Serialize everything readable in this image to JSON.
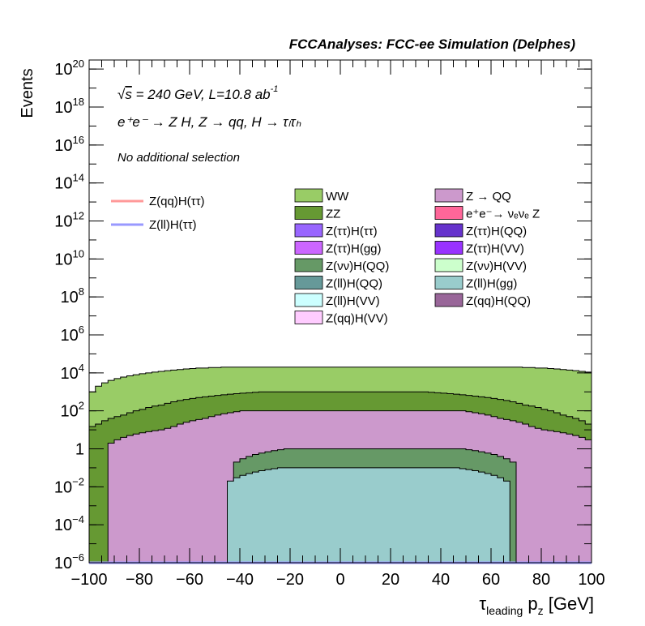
{
  "header": {
    "title": "FCCAnalyses: FCC-ee Simulation (Delphes)"
  },
  "annotations": {
    "line1_prefix": "s",
    "line1_rest": " = 240 GeV, L=10.8 ab",
    "line1_exp": "-1",
    "line2": "e⁺e⁻ → Z H, Z  → qq, H  →  τₗτₕ",
    "line3": "No additional selection"
  },
  "axes": {
    "ylabel": "Events",
    "xlabel_main": "τ",
    "xlabel_sub": "leading",
    "xlabel_rest": " p",
    "xlabel_sub2": "z",
    "xlabel_unit": " [GeV]"
  },
  "chart_data": {
    "type": "area",
    "stacked_histogram": true,
    "x_range": [
      -100,
      100
    ],
    "y_range": [
      1e-06,
      3e+20
    ],
    "y_scale": "log",
    "grid": false,
    "x_ticks": [
      -100,
      -80,
      -60,
      -40,
      -20,
      0,
      20,
      40,
      60,
      80,
      100
    ],
    "x_tick_labels": [
      "−100",
      "−80",
      "−60",
      "−40",
      "−20",
      "0",
      "20",
      "40",
      "60",
      "80",
      "100"
    ],
    "y_ticks": [
      {
        "value": 1e-06,
        "base": "10",
        "exp": "−6"
      },
      {
        "value": 0.0001,
        "base": "10",
        "exp": "−4"
      },
      {
        "value": 0.01,
        "base": "10",
        "exp": "−2"
      },
      {
        "value": 1,
        "base": "1",
        "exp": ""
      },
      {
        "value": 100.0,
        "base": "10",
        "exp": "2"
      },
      {
        "value": 10000.0,
        "base": "10",
        "exp": "4"
      },
      {
        "value": 1000000.0,
        "base": "10",
        "exp": "6"
      },
      {
        "value": 100000000.0,
        "base": "10",
        "exp": "8"
      },
      {
        "value": 10000000000.0,
        "base": "10",
        "exp": "10"
      },
      {
        "value": 1000000000000.0,
        "base": "10",
        "exp": "12"
      },
      {
        "value": 100000000000000.0,
        "base": "10",
        "exp": "14"
      },
      {
        "value": 1e+16,
        "base": "10",
        "exp": "16"
      },
      {
        "value": 1e+18,
        "base": "10",
        "exp": "18"
      },
      {
        "value": 1e+20,
        "base": "10",
        "exp": "20"
      }
    ],
    "stack_layers": [
      {
        "name": "WW",
        "color": "#99cc66",
        "top": [
          1000.0,
          2000.0,
          3000.0,
          4000.0,
          5000.0,
          6000.0,
          7000.0,
          8000.0,
          9000.0,
          10000.0,
          11000.0,
          12000.0,
          13000.0,
          14000.0,
          15000.0,
          16000.0,
          17000.0,
          18000.0,
          18000.0,
          19000.0,
          19000.0,
          20000.0,
          20000.0,
          20000.0,
          20000.0,
          20000.0,
          20000.0,
          20000.0,
          20000.0,
          20000.0,
          20000.0,
          20000.0,
          20000.0,
          20000.0,
          20000.0,
          20000.0,
          20000.0,
          20000.0,
          20000.0,
          20000.0,
          20000.0,
          20000.0,
          20000.0,
          20000.0,
          20000.0,
          20000.0,
          20000.0,
          20000.0,
          20000.0,
          20000.0,
          20000.0,
          20000.0,
          20000.0,
          20000.0,
          20000.0,
          20000.0,
          20000.0,
          20000.0,
          20000.0,
          20000.0,
          20000.0,
          20000.0,
          20000.0,
          20000.0,
          20000.0,
          20000.0,
          20000.0,
          20000.0,
          20000.0,
          19000.0,
          19000.0,
          18000.0,
          18000.0,
          17000.0,
          16000.0,
          15000.0,
          14000.0,
          13000.0,
          12000.0,
          11000.0
        ]
      },
      {
        "name": "ZZ",
        "color": "#669933",
        "top": [
          15.0,
          20.0,
          30.0,
          40.0,
          50.0,
          60.0,
          80.0,
          100.0,
          120.0,
          150.0,
          180.0,
          200.0,
          250.0,
          300.0,
          350.0,
          400.0,
          450.0,
          500.0,
          550.0,
          600.0,
          650.0,
          700.0,
          750.0,
          800.0,
          850.0,
          900.0,
          950.0,
          1000.0,
          1000.0,
          1000.0,
          1000.0,
          1000.0,
          1000.0,
          1000.0,
          1000.0,
          1000.0,
          1000.0,
          1000.0,
          1000.0,
          1000.0,
          1000.0,
          1000.0,
          1000.0,
          1000.0,
          1000.0,
          1000.0,
          1000.0,
          1000.0,
          1000.0,
          1000.0,
          1000.0,
          1000.0,
          1000.0,
          1000.0,
          950.0,
          900.0,
          850.0,
          800.0,
          750.0,
          700.0,
          650.0,
          600.0,
          550.0,
          500.0,
          450.0,
          400.0,
          350.0,
          300.0,
          250.0,
          200.0,
          180.0,
          150.0,
          120.0,
          100.0,
          80.0,
          60.0,
          50.0,
          40.0,
          30.0,
          20.0
        ]
      },
      {
        "name": "Z → QQ",
        "color": "#cc99cc",
        "top": [
          1e-06,
          1e-06,
          1e-06,
          2,
          3,
          4,
          5,
          6,
          7,
          8,
          9,
          10.0,
          12.0,
          15.0,
          20.0,
          25.0,
          30.0,
          35.0,
          40.0,
          50.0,
          60.0,
          70.0,
          80.0,
          90.0,
          100.0,
          100.0,
          100.0,
          100.0,
          100.0,
          100.0,
          100.0,
          100.0,
          100.0,
          100.0,
          100.0,
          100.0,
          100.0,
          100.0,
          100.0,
          100.0,
          100.0,
          100.0,
          100.0,
          100.0,
          100.0,
          100.0,
          100.0,
          100.0,
          100.0,
          100.0,
          100.0,
          100.0,
          100.0,
          100.0,
          100.0,
          100.0,
          100.0,
          100.0,
          100.0,
          100.0,
          90.0,
          80.0,
          70.0,
          60.0,
          50.0,
          40.0,
          35.0,
          30.0,
          25.0,
          20.0,
          15.0,
          12.0,
          10.0,
          9,
          8,
          7,
          6,
          5,
          4,
          3
        ]
      },
      {
        "name": "Z(νν)H(QQ)",
        "color": "#669966",
        "top": [
          1e-06,
          1e-06,
          1e-06,
          1e-06,
          1e-06,
          1e-06,
          1e-06,
          1e-06,
          1e-06,
          1e-06,
          1e-06,
          1e-06,
          1e-06,
          1e-06,
          1e-06,
          1e-06,
          1e-06,
          1e-06,
          1e-06,
          1e-06,
          1e-06,
          1e-06,
          1e-06,
          0.2,
          0.3,
          0.4,
          0.5,
          0.6,
          0.7,
          0.8,
          0.9,
          1,
          1,
          1,
          1,
          1,
          1,
          1,
          1,
          1,
          1,
          1,
          1,
          1,
          1,
          1,
          1,
          1,
          1,
          1,
          1,
          1,
          1,
          1,
          1,
          1,
          1,
          1,
          1,
          1,
          0.9,
          0.8,
          0.7,
          0.6,
          0.5,
          0.4,
          0.3,
          0.2,
          1e-06,
          1e-06,
          1e-06,
          1e-06,
          1e-06,
          1e-06,
          1e-06,
          1e-06,
          1e-06,
          1e-06,
          1e-06,
          1e-06
        ]
      },
      {
        "name": "Z(ll)H(gg)",
        "color": "#99cccc",
        "top": [
          1e-06,
          1e-06,
          1e-06,
          1e-06,
          1e-06,
          1e-06,
          1e-06,
          1e-06,
          1e-06,
          1e-06,
          1e-06,
          1e-06,
          1e-06,
          1e-06,
          1e-06,
          1e-06,
          1e-06,
          1e-06,
          1e-06,
          1e-06,
          1e-06,
          1e-06,
          0.02,
          0.03,
          0.04,
          0.05,
          0.06,
          0.07,
          0.08,
          0.09,
          0.1,
          0.1,
          0.1,
          0.1,
          0.1,
          0.1,
          0.1,
          0.1,
          0.1,
          0.1,
          0.1,
          0.1,
          0.1,
          0.1,
          0.1,
          0.1,
          0.1,
          0.1,
          0.1,
          0.1,
          0.1,
          0.1,
          0.1,
          0.1,
          0.1,
          0.1,
          0.1,
          0.1,
          0.1,
          0.09,
          0.08,
          0.07,
          0.06,
          0.05,
          0.04,
          0.03,
          0.02,
          1e-06,
          1e-06,
          1e-06,
          1e-06,
          1e-06,
          1e-06,
          1e-06,
          1e-06,
          1e-06,
          1e-06,
          1e-06,
          1e-06,
          1e-06
        ]
      }
    ],
    "lines": [
      {
        "name": "Z(qq)H(ττ)",
        "color": "#ff9999",
        "values": [
          1e-06,
          1e-06,
          1e-06,
          1e-06,
          1e-06,
          1e-06,
          1e-06,
          1e-06,
          1e-06,
          1e-06,
          1e-06,
          1e-06,
          1e-06,
          1e-06,
          1e-06,
          1e-06,
          1e-06,
          1e-06,
          1e-06,
          1e-06,
          1e-06,
          1e-06,
          1e-06,
          1e-06,
          1e-06,
          1e-06,
          1e-06,
          1e-06,
          1e-06,
          1e-06,
          1e-06,
          1e-06,
          1e-06,
          1e-06,
          1e-06,
          1e-06,
          1e-06,
          1e-06,
          1e-06,
          1e-06,
          1e-06,
          1e-06,
          1e-06,
          1e-06,
          1e-06,
          1e-06,
          1e-06,
          1e-06,
          1e-06,
          1e-06,
          1e-06,
          1e-06,
          1e-06,
          1e-06,
          1e-06,
          1e-06,
          1e-06,
          1e-06,
          1e-06,
          1e-06,
          1e-06,
          1e-06,
          1e-06,
          1e-06,
          1e-06,
          1e-06,
          1e-06,
          1e-06,
          1e-06,
          1e-06,
          1e-06,
          1e-06,
          1e-06,
          1e-06,
          1e-06,
          1e-06,
          1e-06,
          1e-06,
          1e-06,
          1e-06
        ]
      },
      {
        "name": "Z(ll)H(ττ)",
        "color": "#9999ff",
        "values": [
          1e-06,
          1e-06,
          1e-06,
          1e-06,
          1e-06,
          1e-06,
          1e-06,
          1e-06,
          1e-06,
          1e-06,
          1e-06,
          1e-06,
          1e-06,
          1e-06,
          1e-06,
          1e-06,
          1e-06,
          1e-06,
          1e-06,
          1e-06,
          1e-06,
          1e-06,
          1e-06,
          1e-06,
          1e-06,
          1e-06,
          1e-06,
          1e-06,
          1e-06,
          1e-06,
          1e-06,
          1e-06,
          1e-06,
          1e-06,
          1e-06,
          1e-06,
          1e-06,
          1e-06,
          1e-06,
          1e-06,
          1e-06,
          1e-06,
          1e-06,
          1e-06,
          1e-06,
          1e-06,
          1e-06,
          1e-06,
          1e-06,
          1e-06,
          1e-06,
          1e-06,
          1e-06,
          1e-06,
          1e-06,
          1e-06,
          1e-06,
          1e-06,
          1e-06,
          1e-06,
          1e-06,
          1e-06,
          1e-06,
          1e-06,
          1e-06,
          1e-06,
          1e-06,
          1e-06,
          1e-06,
          1e-06,
          1e-06,
          1e-06,
          1e-06,
          1e-06,
          1e-06,
          1e-06,
          1e-06,
          1e-06,
          1e-06,
          1e-06
        ]
      }
    ],
    "legend_lines": [
      {
        "label": "Z(qq)H(ττ)",
        "color": "#ff9999"
      },
      {
        "label": "Z(ll)H(ττ)",
        "color": "#9999ff"
      }
    ],
    "legend_boxes_col1": [
      {
        "label": "WW",
        "color": "#99cc66"
      },
      {
        "label": "ZZ",
        "color": "#669933"
      },
      {
        "label": "Z(ττ)H(ττ)",
        "color": "#9966ff"
      },
      {
        "label": "Z(ττ)H(gg)",
        "color": "#cc66ff"
      },
      {
        "label": "Z(νν)H(QQ)",
        "color": "#669966"
      },
      {
        "label": "Z(ll)H(QQ)",
        "color": "#669999"
      },
      {
        "label": "Z(ll)H(VV)",
        "color": "#ccffff"
      },
      {
        "label": "Z(qq)H(VV)",
        "color": "#ffccff"
      }
    ],
    "legend_boxes_col2": [
      {
        "label": "Z → QQ",
        "color": "#cc99cc"
      },
      {
        "label": "e⁺e⁻→ νₑνₑ Z",
        "color": "#ff6699"
      },
      {
        "label": "Z(ττ)H(QQ)",
        "color": "#6633cc"
      },
      {
        "label": "Z(ττ)H(VV)",
        "color": "#9933ff"
      },
      {
        "label": "Z(νν)H(VV)",
        "color": "#ccffcc"
      },
      {
        "label": "Z(ll)H(gg)",
        "color": "#99cccc"
      },
      {
        "label": "Z(qq)H(QQ)",
        "color": "#996699"
      }
    ]
  }
}
